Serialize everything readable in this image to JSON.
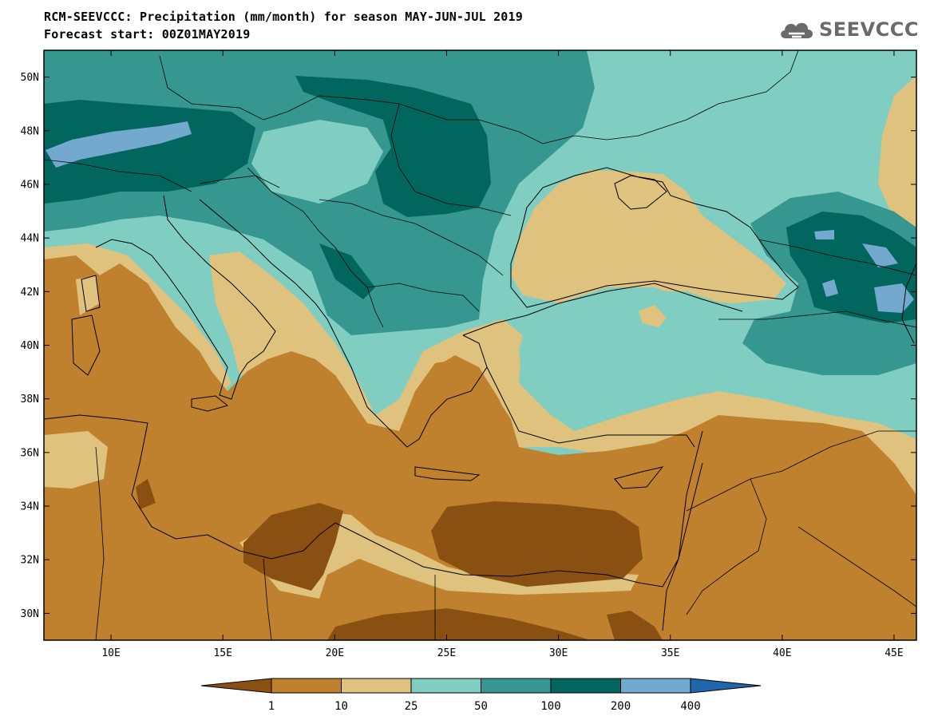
{
  "title": {
    "line1": "RCM-SEEVCCC: Precipitation (mm/month) for season MAY-JUN-JUL 2019",
    "line2": "Forecast start: 00Z01MAY2019"
  },
  "logo": {
    "text": "SEEVCCC",
    "icon": "cloud-icon"
  },
  "map": {
    "lon_range": [
      7,
      46
    ],
    "lat_range": [
      29,
      51
    ],
    "lat_ticks": [
      "50N",
      "48N",
      "46N",
      "44N",
      "42N",
      "40N",
      "38N",
      "36N",
      "34N",
      "32N",
      "30N"
    ],
    "lon_ticks": [
      "10E",
      "15E",
      "20E",
      "25E",
      "30E",
      "35E",
      "40E",
      "45E"
    ]
  },
  "colorbar": {
    "labels": [
      "1",
      "10",
      "25",
      "50",
      "100",
      "200",
      "400"
    ],
    "colors": {
      "lt1": "#8a5011",
      "c1_10": "#bf812d",
      "c10_25": "#dfc27d",
      "c25_50": "#80cdc1",
      "c50_100": "#35978f",
      "c100_200": "#01665e",
      "c200_400": "#74a9cf",
      "gt400": "#2166ac"
    }
  }
}
